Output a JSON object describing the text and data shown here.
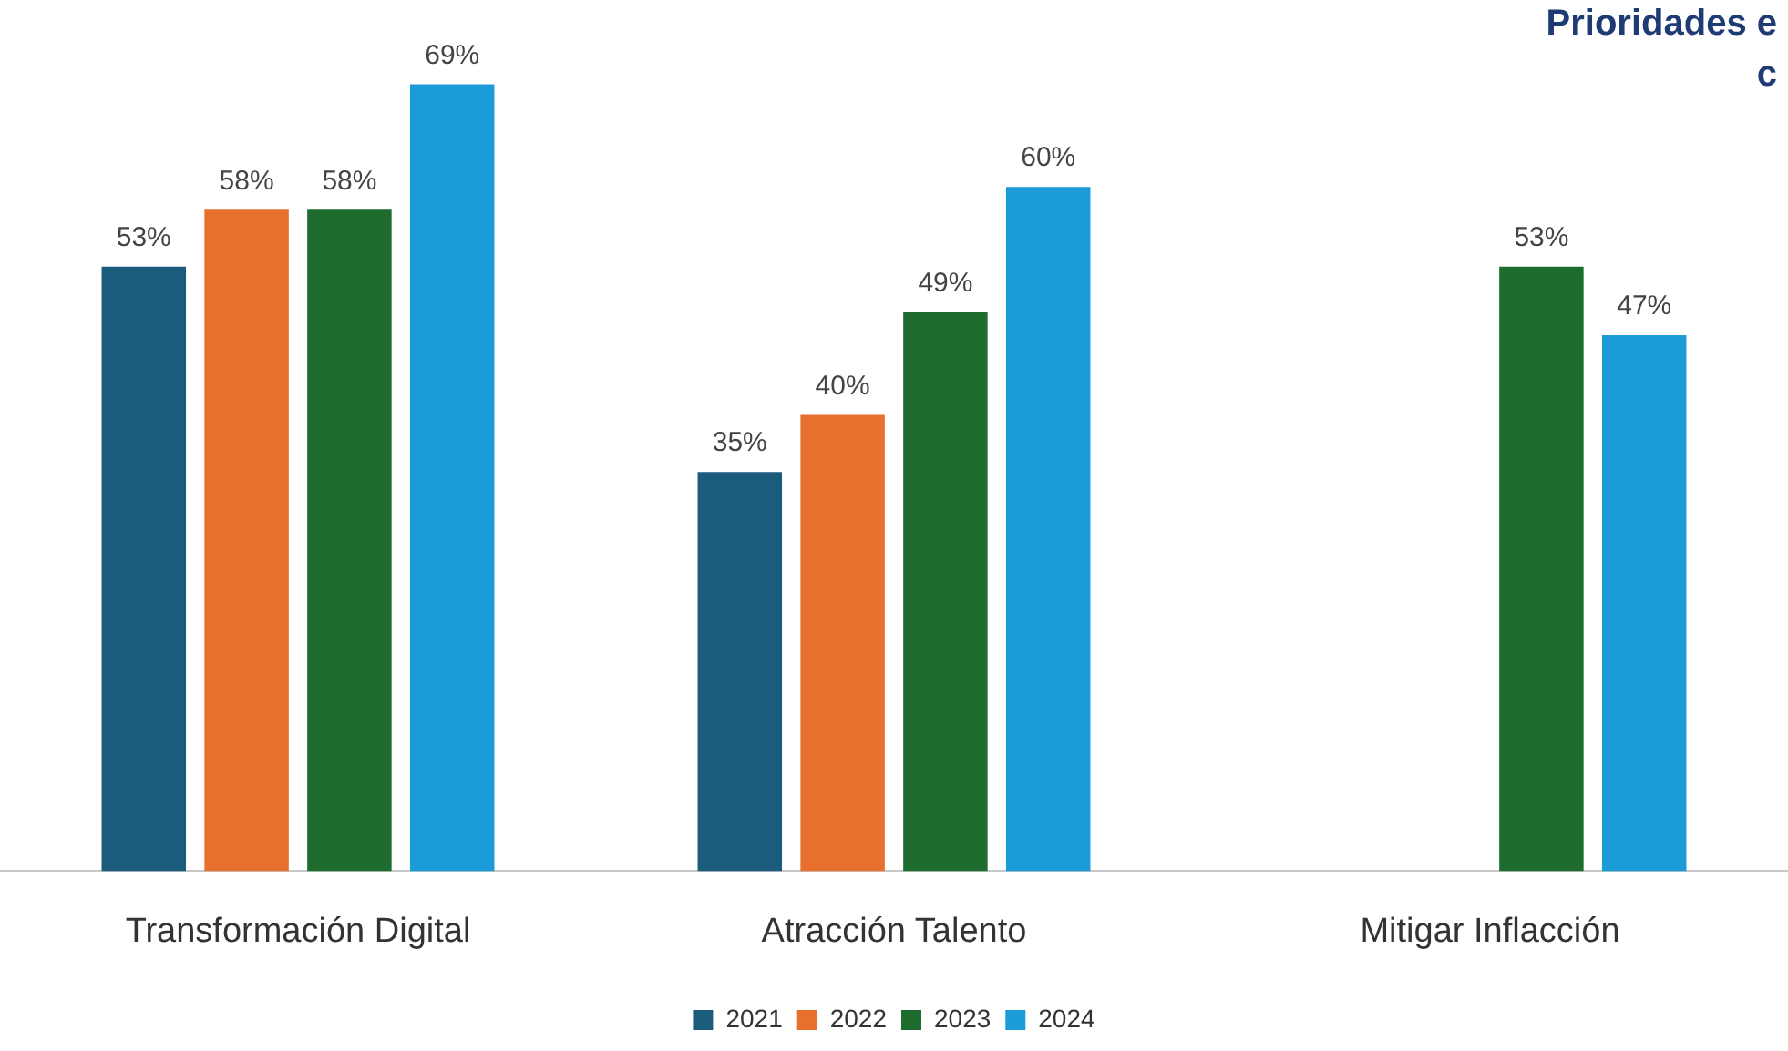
{
  "chart_data": {
    "type": "bar",
    "title": "Prioridades e",
    "subtitle": "c",
    "categories": [
      "Transformación Digital",
      "Atracción Talento",
      "Mitigar Inflacción"
    ],
    "series": [
      {
        "name": "2021",
        "color": "#1b5b7c",
        "values": [
          53,
          35,
          null
        ],
        "value_labels": [
          "53%",
          "35%",
          null
        ]
      },
      {
        "name": "2022",
        "color": "#e8702f",
        "values": [
          58,
          40,
          null
        ],
        "value_labels": [
          "58%",
          "40%",
          null
        ]
      },
      {
        "name": "2023",
        "color": "#1f6c2f",
        "values": [
          58,
          49,
          53
        ],
        "value_labels": [
          "58%",
          "49%",
          "53%"
        ]
      },
      {
        "name": "2024",
        "color": "#1b9bd7",
        "values": [
          69,
          60,
          47
        ],
        "value_labels": [
          "69%",
          "60%",
          "47%"
        ]
      }
    ],
    "grid": false,
    "legend": "bottom"
  }
}
